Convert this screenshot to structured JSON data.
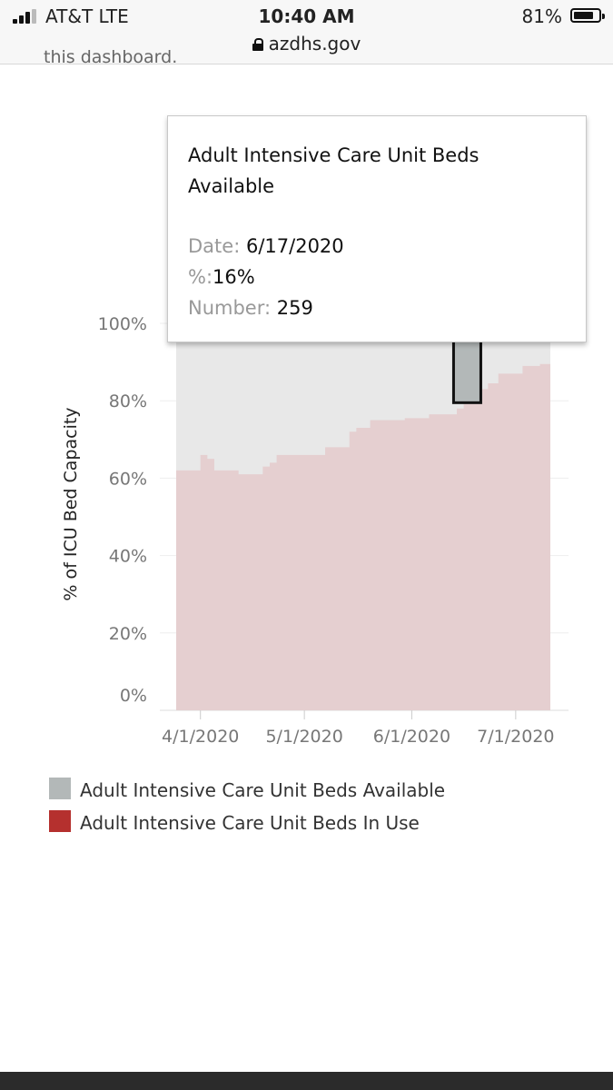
{
  "status_bar": {
    "carrier": "AT&T   LTE",
    "time": "10:40 AM",
    "battery": "81%",
    "battery_level": 0.81,
    "signal_bars": 3,
    "domain": "azdhs.gov",
    "lock_icon": "lock-icon"
  },
  "page": {
    "cut_off_text": "this dashboard."
  },
  "tooltip": {
    "title": "Adult Intensive Care Unit Beds Available",
    "date_key": "Date:",
    "date_value": "6/17/2020",
    "pct_key": "%:",
    "pct_value": "16%",
    "number_key": "Number:",
    "number_value": "259"
  },
  "legend": [
    {
      "label": "Adult Intensive Care Unit Beds Available",
      "color": "#b3b8b8"
    },
    {
      "label": "Adult Intensive Care Unit Beds In Use",
      "color": "#b5302e"
    }
  ],
  "chart_data": {
    "type": "area",
    "ylabel": "% of ICU Bed Capacity",
    "ylim": [
      0,
      100
    ],
    "yticks": [
      "0%",
      "20%",
      "40%",
      "60%",
      "80%",
      "100%"
    ],
    "ytick_values": [
      0,
      20,
      40,
      60,
      80,
      100
    ],
    "xlim": [
      "2020-03-25",
      "2020-07-11"
    ],
    "xticks": [
      "4/1/2020",
      "5/1/2020",
      "6/1/2020",
      "7/1/2020"
    ],
    "xtick_dates": [
      "2020-04-01",
      "2020-05-01",
      "2020-06-01",
      "2020-07-01"
    ],
    "stacked": true,
    "series": [
      {
        "name": "Adult Intensive Care Unit Beds In Use",
        "color": "#e5cfd0",
        "step": true,
        "points": [
          [
            "2020-03-25",
            62
          ],
          [
            "2020-04-01",
            66
          ],
          [
            "2020-04-03",
            65
          ],
          [
            "2020-04-05",
            62
          ],
          [
            "2020-04-12",
            61
          ],
          [
            "2020-04-19",
            63
          ],
          [
            "2020-04-21",
            64
          ],
          [
            "2020-04-23",
            66
          ],
          [
            "2020-05-07",
            68
          ],
          [
            "2020-05-14",
            72
          ],
          [
            "2020-05-16",
            73
          ],
          [
            "2020-05-20",
            75
          ],
          [
            "2020-05-30",
            75.5
          ],
          [
            "2020-06-06",
            76.5
          ],
          [
            "2020-06-14",
            78
          ],
          [
            "2020-06-16",
            79.5
          ],
          [
            "2020-06-19",
            80.5
          ],
          [
            "2020-06-21",
            83
          ],
          [
            "2020-06-23",
            84.5
          ],
          [
            "2020-06-26",
            87
          ],
          [
            "2020-07-03",
            89
          ],
          [
            "2020-07-08",
            89.5
          ],
          [
            "2020-07-10",
            89.5
          ]
        ]
      },
      {
        "name": "Adult Intensive Care Unit Beds Available",
        "color": "#e8e8e8",
        "fills_to": 100
      }
    ],
    "highlighted_point": {
      "date": "2020-06-17",
      "series": "Adult Intensive Care Unit Beds Available",
      "value_pct": 16,
      "number": 259,
      "color": "#b3b8b8"
    }
  }
}
